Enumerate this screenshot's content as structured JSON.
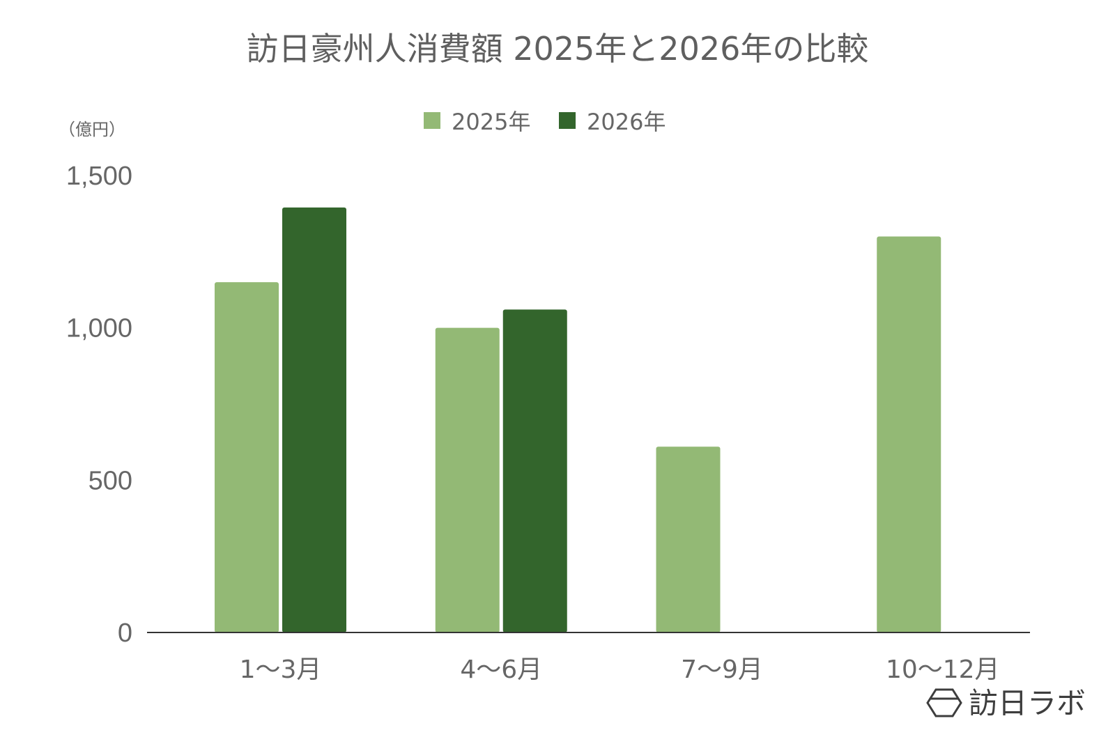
{
  "colors": {
    "series_2025": "#93b975",
    "series_2026": "#33652c",
    "axis": "#333333",
    "text": "#666666",
    "title": "#5f5f5f",
    "brand": "#3d3d3d"
  },
  "brand": {
    "icon": "hexagon-logo-icon",
    "text": "訪日ラボ"
  },
  "chart_data": {
    "type": "bar",
    "title": "訪日豪州人消費額 2025年と2026年の比較",
    "unit_label": "（億円）",
    "categories": [
      "1〜3月",
      "4〜6月",
      "7〜9月",
      "10〜12月"
    ],
    "series": [
      {
        "name": "2025年",
        "values": [
          1150,
          1000,
          610,
          1300
        ]
      },
      {
        "name": "2026年",
        "values": [
          1395,
          1060,
          null,
          null
        ]
      }
    ],
    "ylim": [
      0,
      1500
    ],
    "yticks": [
      0,
      500,
      1000,
      1500
    ],
    "ytick_labels": [
      "0",
      "500",
      "1,000",
      "1,500"
    ],
    "legend_position": "top-center",
    "grid": false
  }
}
